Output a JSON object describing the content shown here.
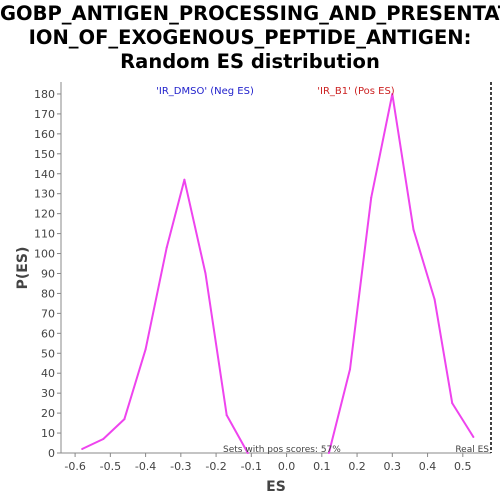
{
  "chart_data": {
    "type": "line",
    "title_lines": [
      "GOBP_ANTIGEN_PROCESSING_AND_PRESENTAT",
      "ION_OF_EXOGENOUS_PEPTIDE_ANTIGEN:",
      "Random ES distribution"
    ],
    "xlabel": "ES",
    "ylabel": "P(ES)",
    "xlim": [
      -0.64,
      0.58
    ],
    "ylim": [
      0,
      186
    ],
    "x_ticks": [
      -0.6,
      -0.5,
      -0.4,
      -0.3,
      -0.2,
      -0.1,
      0.0,
      0.1,
      0.2,
      0.3,
      0.4,
      0.5
    ],
    "x_tick_labels": [
      "-0.6",
      "-0.5",
      "-0.4",
      "-0.3",
      "-0.2",
      "-0.1",
      "0.0",
      "0.1",
      "0.2",
      "0.3",
      "0.4",
      "0.5"
    ],
    "y_ticks": [
      0,
      10,
      20,
      30,
      40,
      50,
      60,
      70,
      80,
      90,
      100,
      110,
      120,
      130,
      140,
      150,
      160,
      170,
      180
    ],
    "y_tick_labels": [
      "0",
      "10",
      "20",
      "30",
      "40",
      "50",
      "60",
      "70",
      "80",
      "90",
      "100",
      "110",
      "120",
      "130",
      "140",
      "150",
      "160",
      "170",
      "180"
    ],
    "grid": false,
    "series": [
      {
        "color": "#ee44ee",
        "x": [
          -0.58,
          -0.52,
          -0.46,
          -0.4,
          -0.34,
          -0.29,
          -0.23,
          -0.17,
          -0.11
        ],
        "y": [
          2,
          7,
          17,
          52,
          103,
          137,
          90,
          19,
          0
        ]
      },
      {
        "color": "#ee44ee",
        "x": [
          0.12,
          0.18,
          0.24,
          0.3,
          0.36,
          0.42,
          0.47,
          0.53
        ],
        "y": [
          0,
          42,
          128,
          180,
          112,
          77,
          25,
          8
        ]
      }
    ],
    "annotations": {
      "neg_label": "'IR_DMSO' (Neg ES)",
      "neg_color": "#2222cc",
      "pos_label": "'IR_B1' (Pos ES)",
      "pos_color": "#cc2222",
      "pos_scores_text": "Sets with pos scores: 57%",
      "real_es_text": "Real ES"
    },
    "real_es_x": 0.58
  }
}
